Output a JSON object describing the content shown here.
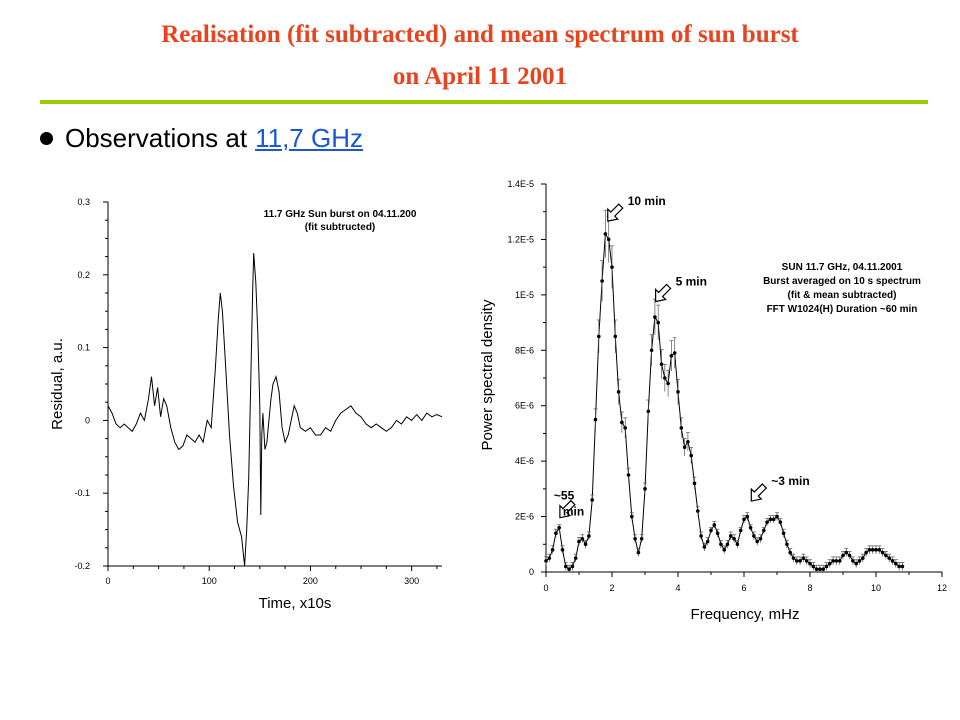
{
  "page": {
    "title_line1": "Realisation (fit subtracted) and mean spectrum of sun burst",
    "title_line2": "on April 11 2001",
    "bullet_prefix": "Observations at",
    "bullet_link": "11,7 GHz"
  },
  "colors": {
    "title": "#e8431e",
    "rule": "#99cc00",
    "link": "#1a57d6",
    "ink": "#000000"
  },
  "chart_data": [
    {
      "type": "line",
      "title": "11.7 GHz Sun burst on 04.11.200",
      "subtitle": "(fit subtructed)",
      "xlabel": "Time, x10s",
      "ylabel": "Residual, a.u.",
      "xlim": [
        0,
        330
      ],
      "ylim": [
        -0.2,
        0.3
      ],
      "xticks": [
        0,
        100,
        200,
        300
      ],
      "xtick_labels": [
        "0",
        "100",
        "200",
        "300"
      ],
      "yticks": [
        -0.2,
        -0.1,
        0,
        0.1,
        0.2,
        0.3
      ],
      "ytick_labels": [
        "-0.2",
        "-0.1",
        "0",
        "0.1",
        "0.2",
        "0.3"
      ],
      "x": [
        0,
        4,
        8,
        12,
        16,
        20,
        24,
        28,
        32,
        36,
        40,
        43,
        46,
        49,
        52,
        55,
        58,
        62,
        66,
        70,
        74,
        78,
        82,
        86,
        90,
        94,
        98,
        102,
        106,
        109,
        111,
        113,
        116,
        120,
        124,
        128,
        132,
        135,
        137,
        139,
        141,
        143,
        144,
        146,
        148,
        150,
        151,
        152,
        153,
        155,
        157,
        159,
        161,
        163,
        166,
        169,
        172,
        175,
        178,
        181,
        184,
        187,
        190,
        195,
        200,
        205,
        210,
        215,
        220,
        225,
        230,
        235,
        240,
        245,
        250,
        255,
        260,
        265,
        270,
        275,
        280,
        285,
        290,
        295,
        300,
        305,
        310,
        315,
        320,
        325,
        330
      ],
      "y": [
        0.02,
        0.01,
        -0.005,
        -0.01,
        -0.005,
        -0.01,
        -0.015,
        -0.005,
        0.01,
        0.0,
        0.03,
        0.06,
        0.02,
        0.045,
        0.005,
        0.03,
        0.02,
        -0.01,
        -0.03,
        -0.04,
        -0.035,
        -0.02,
        -0.025,
        -0.03,
        -0.02,
        -0.03,
        0.0,
        -0.01,
        0.07,
        0.14,
        0.175,
        0.15,
        0.08,
        -0.02,
        -0.09,
        -0.14,
        -0.16,
        -0.2,
        -0.15,
        -0.08,
        0.05,
        0.18,
        0.23,
        0.19,
        0.12,
        0.02,
        -0.13,
        -0.02,
        0.01,
        -0.04,
        -0.03,
        0.0,
        0.03,
        0.05,
        0.06,
        0.04,
        -0.01,
        -0.03,
        -0.02,
        0.0,
        0.02,
        0.01,
        -0.01,
        -0.015,
        -0.01,
        -0.02,
        -0.02,
        -0.01,
        -0.015,
        0.0,
        0.01,
        0.015,
        0.02,
        0.01,
        0.005,
        -0.005,
        -0.01,
        -0.005,
        -0.01,
        -0.015,
        -0.01,
        0.0,
        -0.005,
        0.005,
        0.0,
        0.008,
        0.0,
        0.01,
        0.005,
        0.008,
        0.005
      ]
    },
    {
      "type": "scatter",
      "title": "SUN 11.7 GHz, 04.11.2001",
      "annotation_lines": [
        "SUN 11.7 GHz, 04.11.2001",
        "Burst averaged on 10 s spectrum",
        "(fit & mean subtracted)",
        "FFT W1024(H) Duration ~60 min"
      ],
      "xlabel": "Frequency, mHz",
      "ylabel": "Power spectral density",
      "xlim": [
        0,
        12
      ],
      "ylim": [
        0,
        1.4e-05
      ],
      "xticks": [
        0,
        2,
        4,
        6,
        8,
        10,
        12
      ],
      "xtick_labels": [
        "0",
        "2",
        "4",
        "6",
        "8",
        "10",
        "12"
      ],
      "yticks": [
        0,
        2e-06,
        4e-06,
        6e-06,
        8e-06,
        1e-05,
        1.2e-05,
        1.4e-05
      ],
      "ytick_labels": [
        "0",
        "2E-6",
        "4E-6",
        "6E-6",
        "8E-6",
        "1E-5",
        "1.2E-5",
        "1.4E-5"
      ],
      "x": [
        0.0,
        0.1,
        0.2,
        0.3,
        0.4,
        0.5,
        0.6,
        0.7,
        0.8,
        0.9,
        1.0,
        1.1,
        1.2,
        1.3,
        1.4,
        1.5,
        1.6,
        1.7,
        1.8,
        1.9,
        2.0,
        2.1,
        2.2,
        2.3,
        2.4,
        2.5,
        2.6,
        2.7,
        2.8,
        2.9,
        3.0,
        3.1,
        3.2,
        3.3,
        3.4,
        3.5,
        3.6,
        3.7,
        3.8,
        3.9,
        4.0,
        4.1,
        4.2,
        4.3,
        4.4,
        4.5,
        4.6,
        4.7,
        4.8,
        4.9,
        5.0,
        5.1,
        5.2,
        5.3,
        5.4,
        5.5,
        5.6,
        5.7,
        5.8,
        5.9,
        6.0,
        6.1,
        6.2,
        6.3,
        6.4,
        6.5,
        6.6,
        6.7,
        6.8,
        6.9,
        7.0,
        7.1,
        7.2,
        7.3,
        7.4,
        7.5,
        7.6,
        7.7,
        7.8,
        7.9,
        8.0,
        8.1,
        8.2,
        8.3,
        8.4,
        8.5,
        8.6,
        8.7,
        8.8,
        8.9,
        9.0,
        9.1,
        9.2,
        9.3,
        9.4,
        9.5,
        9.6,
        9.7,
        9.8,
        9.9,
        10.0,
        10.1,
        10.2,
        10.3,
        10.4,
        10.5,
        10.6,
        10.7,
        10.8
      ],
      "y": [
        4e-07,
        5e-07,
        8e-07,
        1.4e-06,
        1.6e-06,
        8e-07,
        2e-07,
        1e-07,
        2e-07,
        5e-07,
        1.1e-06,
        1.2e-06,
        1e-06,
        1.3e-06,
        2.6e-06,
        5.5e-06,
        8.5e-06,
        1.05e-05,
        1.22e-05,
        1.2e-05,
        1.1e-05,
        8.5e-06,
        6.5e-06,
        5.4e-06,
        5.2e-06,
        3.5e-06,
        2e-06,
        1.2e-06,
        7e-07,
        1.2e-06,
        3e-06,
        5.8e-06,
        8e-06,
        9.2e-06,
        9e-06,
        7.5e-06,
        7e-06,
        6.8e-06,
        7.8e-06,
        7.9e-06,
        6.5e-06,
        5.2e-06,
        4.5e-06,
        4.7e-06,
        4.2e-06,
        3.2e-06,
        2.2e-06,
        1.3e-06,
        9e-07,
        1.1e-06,
        1.5e-06,
        1.7e-06,
        1.4e-06,
        1e-06,
        8e-07,
        1e-06,
        1.3e-06,
        1.2e-06,
        1e-06,
        1.5e-06,
        1.9e-06,
        2e-06,
        1.6e-06,
        1.3e-06,
        1.1e-06,
        1.2e-06,
        1.5e-06,
        1.8e-06,
        1.9e-06,
        1.9e-06,
        2e-06,
        1.8e-06,
        1.4e-06,
        1e-06,
        7e-07,
        5e-07,
        4e-07,
        4e-07,
        5e-07,
        4e-07,
        3e-07,
        2e-07,
        1e-07,
        1e-07,
        1e-07,
        2e-07,
        3e-07,
        4e-07,
        4e-07,
        4e-07,
        6e-07,
        7e-07,
        6e-07,
        4e-07,
        3e-07,
        4e-07,
        5e-07,
        7e-07,
        8e-07,
        8e-07,
        8e-07,
        8e-07,
        7e-07,
        6e-07,
        5e-07,
        4e-07,
        3e-07,
        2e-07,
        2e-07
      ],
      "error_bars": "vertical on every point",
      "markers": [
        {
          "label": "~55",
          "label2": "min",
          "x": 0.3,
          "y": 1.6e-06
        },
        {
          "label": "10 min",
          "label2": "",
          "x": 1.75,
          "y": 1.23e-05
        },
        {
          "label": "5 min",
          "label2": "",
          "x": 3.2,
          "y": 9.4e-06
        },
        {
          "label": "~3 min",
          "label2": "",
          "x": 6.1,
          "y": 2.2e-06
        }
      ]
    }
  ]
}
